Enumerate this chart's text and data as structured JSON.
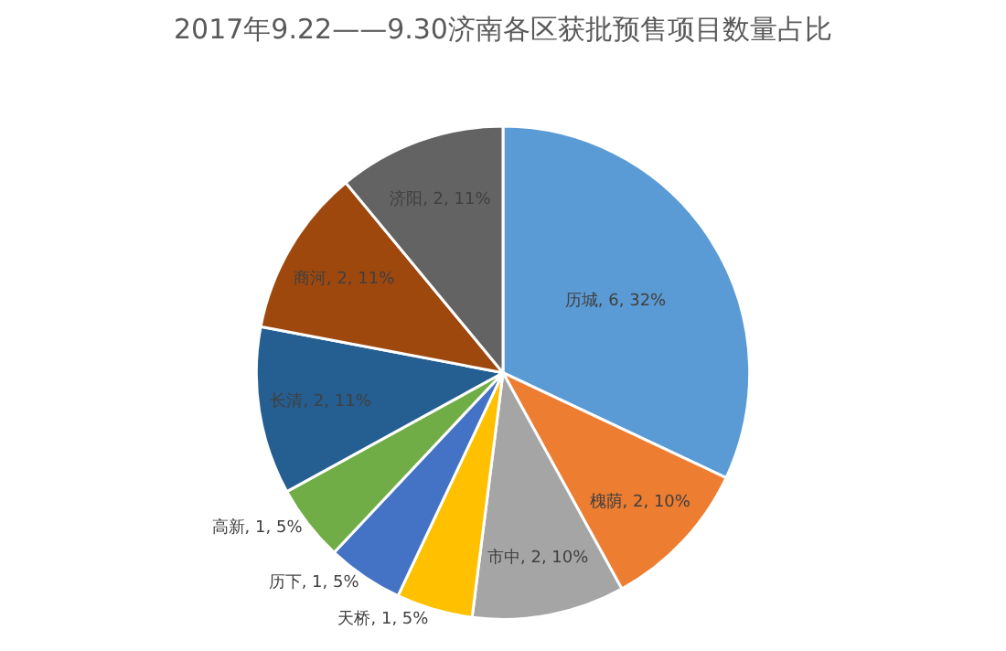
{
  "chart_data": {
    "type": "pie",
    "title": "2017年9.22——9.30济南各区获批预售项目数量占比",
    "categories": [
      "历城",
      "槐荫",
      "市中",
      "天桥",
      "历下",
      "高新",
      "长清",
      "商河",
      "济阳"
    ],
    "values": [
      32,
      10,
      10,
      5,
      5,
      5,
      11,
      11,
      11
    ],
    "value_labels": [
      "6, 32%",
      "2, 10%",
      "2, 10%",
      "1, 5%",
      "1, 5%",
      "1, 5%",
      "2, 11%",
      "2, 11%",
      "2, 11%"
    ],
    "colors": [
      "#5b9bd5",
      "#ed7d31",
      "#a5a5a5",
      "#ffc000",
      "#4472c4",
      "#70ad47",
      "#255e91",
      "#9e480e",
      "#636363"
    ],
    "data_labels": true,
    "legend": false
  }
}
